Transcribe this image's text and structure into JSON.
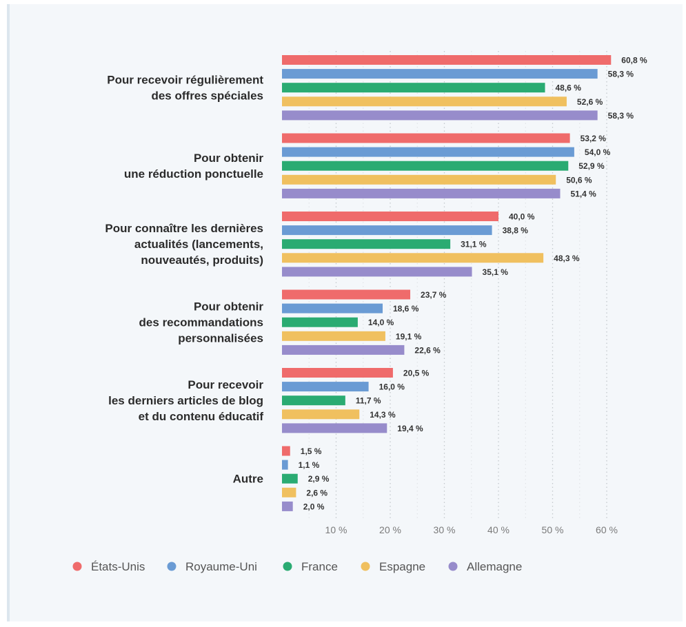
{
  "chart_data": {
    "type": "bar",
    "orientation": "horizontal",
    "categories": [
      [
        "Pour recevoir régulièrement",
        "des offres spéciales"
      ],
      [
        "Pour obtenir",
        "une réduction ponctuelle"
      ],
      [
        "Pour connaître les dernières",
        "actualités (lancements,",
        "nouveautés, produits)"
      ],
      [
        "Pour obtenir",
        "des recommandations",
        "personnalisées"
      ],
      [
        "Pour recevoir",
        "les derniers articles de blog",
        "et du contenu éducatif"
      ],
      [
        "Autre"
      ]
    ],
    "series": [
      {
        "name": "États-Unis",
        "color": "#ef6b6b",
        "values": [
          60.8,
          53.2,
          40.0,
          23.7,
          20.5,
          1.5
        ],
        "labels": [
          "60,8 %",
          "53,2 %",
          "40,0 %",
          "23,7 %",
          "20,5 %",
          "1,5 %"
        ]
      },
      {
        "name": "Royaume-Uni",
        "color": "#6a9bd4",
        "values": [
          58.3,
          54.0,
          38.8,
          18.6,
          16.0,
          1.1
        ],
        "labels": [
          "58,3 %",
          "54,0 %",
          "38,8 %",
          "18,6 %",
          "16,0 %",
          "1,1 %"
        ]
      },
      {
        "name": "France",
        "color": "#2aab72",
        "values": [
          48.6,
          52.9,
          31.1,
          14.0,
          11.7,
          2.9
        ],
        "labels": [
          "48,6 %",
          "52,9 %",
          "31,1 %",
          "14,0 %",
          "11,7 %",
          "2,9 %"
        ]
      },
      {
        "name": "Espagne",
        "color": "#f0c05f",
        "values": [
          52.6,
          50.6,
          48.3,
          19.1,
          14.3,
          2.6
        ],
        "labels": [
          "52,6 %",
          "50,6 %",
          "48,3 %",
          "19,1 %",
          "14,3 %",
          "2,6 %"
        ]
      },
      {
        "name": "Allemagne",
        "color": "#978ccb",
        "values": [
          58.3,
          51.4,
          35.1,
          22.6,
          19.4,
          2.0
        ],
        "labels": [
          "58,3 %",
          "51,4 %",
          "35,1 %",
          "22,6 %",
          "19,4 %",
          "2,0 %"
        ]
      }
    ],
    "x_ticks": [
      10,
      20,
      30,
      40,
      50,
      60
    ],
    "x_tick_labels": [
      "10 %",
      "20 %",
      "30 %",
      "40 %",
      "50 %",
      "60 %"
    ],
    "xlim": [
      0,
      62
    ],
    "grid": "vertical dotted",
    "legend_position": "bottom",
    "title": "",
    "xlabel": "",
    "ylabel": ""
  }
}
